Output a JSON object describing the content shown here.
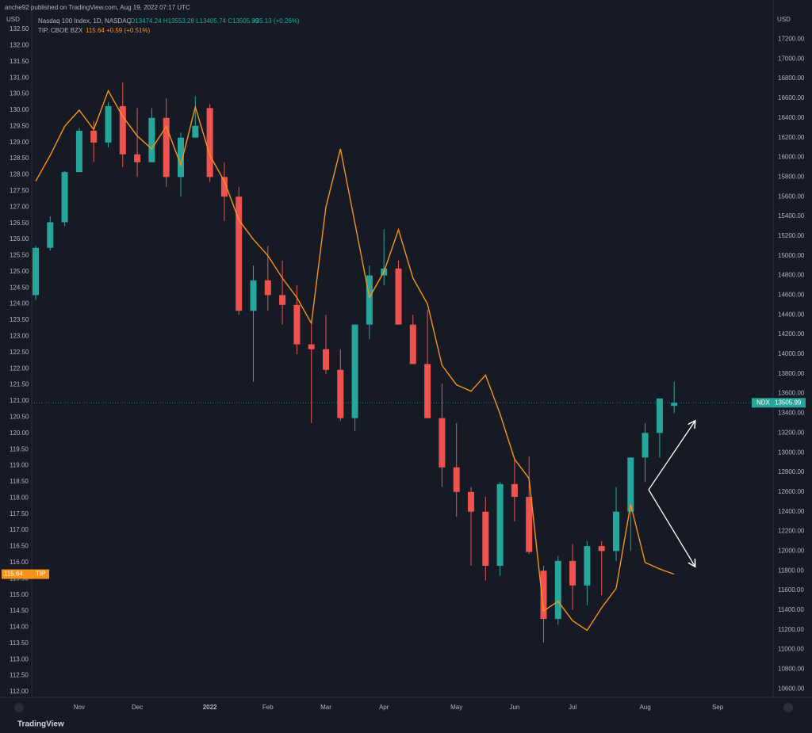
{
  "header": {
    "publisher": "anche92 published on TradingView.com, Aug 19, 2022 07:17 UTC",
    "footer": "TradingView"
  },
  "chart_data": {
    "type": "candlestick",
    "ylabel": "USD",
    "y2label": "USD",
    "categories": [
      null,
      null,
      null,
      "Nov",
      null,
      null,
      null,
      "Dec",
      null,
      null,
      null,
      null,
      "2022",
      null,
      null,
      null,
      "Feb",
      null,
      null,
      null,
      "Mar",
      null,
      null,
      null,
      "Apr",
      null,
      null,
      null,
      null,
      "May",
      null,
      null,
      null,
      "Jun",
      null,
      null,
      null,
      "Jul",
      null,
      null,
      null,
      null,
      "Aug",
      null,
      null,
      null,
      null,
      "Sep"
    ],
    "ylim": [
      112,
      132.5
    ],
    "yticks": [
      {
        "value": 112,
        "label": "112.00"
      },
      {
        "value": 112.5,
        "label": "112.50"
      },
      {
        "value": 113,
        "label": "113.00"
      },
      {
        "value": 113.5,
        "label": "113.50"
      },
      {
        "value": 114,
        "label": "114.00"
      },
      {
        "value": 114.5,
        "label": "114.50"
      },
      {
        "value": 115,
        "label": "115.00"
      },
      {
        "value": 115.5,
        "label": "115.50"
      },
      {
        "value": 116,
        "label": "116.00"
      },
      {
        "value": 116.5,
        "label": "116.50"
      },
      {
        "value": 117,
        "label": "117.00"
      },
      {
        "value": 117.5,
        "label": "117.50"
      },
      {
        "value": 118,
        "label": "118.00"
      },
      {
        "value": 118.5,
        "label": "118.50"
      },
      {
        "value": 119,
        "label": "119.00"
      },
      {
        "value": 119.5,
        "label": "119.50"
      },
      {
        "value": 120,
        "label": "120.00"
      },
      {
        "value": 120.5,
        "label": "120.50"
      },
      {
        "value": 121,
        "label": "121.00"
      },
      {
        "value": 121.5,
        "label": "121.50"
      },
      {
        "value": 122,
        "label": "122.00"
      },
      {
        "value": 122.5,
        "label": "122.50"
      },
      {
        "value": 123,
        "label": "123.00"
      },
      {
        "value": 123.5,
        "label": "123.50"
      },
      {
        "value": 124,
        "label": "124.00"
      },
      {
        "value": 124.5,
        "label": "124.50"
      },
      {
        "value": 125,
        "label": "125.00"
      },
      {
        "value": 125.5,
        "label": "125.50"
      },
      {
        "value": 126,
        "label": "126.00"
      },
      {
        "value": 126.5,
        "label": "126.50"
      },
      {
        "value": 127,
        "label": "127.00"
      },
      {
        "value": 127.5,
        "label": "127.50"
      },
      {
        "value": 128,
        "label": "128.00"
      },
      {
        "value": 128.5,
        "label": "128.50"
      },
      {
        "value": 129,
        "label": "129.00"
      },
      {
        "value": 129.5,
        "label": "129.50"
      },
      {
        "value": 130,
        "label": "130.00"
      },
      {
        "value": 130.5,
        "label": "130.50"
      },
      {
        "value": 131,
        "label": "131.00"
      },
      {
        "value": 131.5,
        "label": "131.50"
      },
      {
        "value": 132,
        "label": "132.00"
      },
      {
        "value": 132.5,
        "label": "132.50"
      }
    ],
    "y2lim": [
      10570,
      17300
    ],
    "y2ticks": [
      {
        "value": 10600,
        "label": "10600.00"
      },
      {
        "value": 10800,
        "label": "10800.00"
      },
      {
        "value": 11000,
        "label": "11000.00"
      },
      {
        "value": 11200,
        "label": "11200.00"
      },
      {
        "value": 11400,
        "label": "11400.00"
      },
      {
        "value": 11600,
        "label": "11600.00"
      },
      {
        "value": 11800,
        "label": "11800.00"
      },
      {
        "value": 12000,
        "label": "12000.00"
      },
      {
        "value": 12200,
        "label": "12200.00"
      },
      {
        "value": 12400,
        "label": "12400.00"
      },
      {
        "value": 12600,
        "label": "12600.00"
      },
      {
        "value": 12800,
        "label": "12800.00"
      },
      {
        "value": 13000,
        "label": "13000.00"
      },
      {
        "value": 13200,
        "label": "13200.00"
      },
      {
        "value": 13400,
        "label": "13400.00"
      },
      {
        "value": 13600,
        "label": "13600.00"
      },
      {
        "value": 13800,
        "label": "13800.00"
      },
      {
        "value": 14000,
        "label": "14000.00"
      },
      {
        "value": 14200,
        "label": "14200.00"
      },
      {
        "value": 14400,
        "label": "14400.00"
      },
      {
        "value": 14600,
        "label": "14600.00"
      },
      {
        "value": 14800,
        "label": "14800.00"
      },
      {
        "value": 15000,
        "label": "15000.00"
      },
      {
        "value": 15200,
        "label": "15200.00"
      },
      {
        "value": 15400,
        "label": "15400.00"
      },
      {
        "value": 15600,
        "label": "15600.00"
      },
      {
        "value": 15800,
        "label": "15800.00"
      },
      {
        "value": 16000,
        "label": "16000.00"
      },
      {
        "value": 16200,
        "label": "16200.00"
      },
      {
        "value": 16400,
        "label": "16400.00"
      },
      {
        "value": 16600,
        "label": "16600.00"
      },
      {
        "value": 16800,
        "label": "16800.00"
      },
      {
        "value": 17000,
        "label": "17000.00"
      },
      {
        "value": 17200,
        "label": "17200.00"
      }
    ],
    "series": [
      {
        "name": "Nasdaq 100 Index, 1D, NASDAQ",
        "ohlc_text": "O13474.24 H13553.28 L13405.74 C13505.99",
        "change_text": "+35.13 (+0.26%)",
        "tag": "NDX",
        "axis": "y2",
        "up_color": "#26a69a",
        "down_color": "#ef5350",
        "open": [
          14600,
          15080,
          15340,
          15850,
          16270,
          16150,
          16520,
          16030,
          15950,
          16400,
          15800,
          16200,
          16500,
          15800,
          15600,
          14440,
          14750,
          14600,
          14500,
          14100,
          14050,
          13840,
          13350,
          14300,
          14800,
          14870,
          14300,
          13900,
          13350,
          12850,
          12600,
          12400,
          11850,
          12680,
          12550,
          11800,
          11310,
          11900,
          11650,
          12050,
          12000,
          12400,
          12950,
          13200,
          13474.24,
          null,
          null,
          null
        ],
        "high": [
          15100,
          15400,
          15860,
          16300,
          16370,
          16560,
          16760,
          16500,
          16500,
          16600,
          16250,
          16620,
          16540,
          15950,
          15700,
          14900,
          15100,
          14950,
          14700,
          14300,
          14400,
          14050,
          14300,
          14900,
          15270,
          14950,
          14400,
          14450,
          13700,
          13300,
          12650,
          12550,
          12700,
          12940,
          12960,
          11850,
          11950,
          12070,
          12100,
          12100,
          12650,
          12950,
          13300,
          13550,
          13720,
          null,
          null,
          null
        ],
        "low": [
          14550,
          15050,
          15300,
          15850,
          15950,
          16100,
          15900,
          15800,
          15950,
          15700,
          15600,
          16200,
          15750,
          15350,
          14400,
          13720,
          14440,
          14300,
          14000,
          13300,
          13800,
          13320,
          13220,
          14150,
          14700,
          14300,
          13900,
          13350,
          12650,
          12350,
          11850,
          11700,
          11750,
          12300,
          11970,
          11070,
          11250,
          11400,
          11450,
          11550,
          11900,
          12000,
          12700,
          12950,
          13400,
          null,
          null,
          null
        ],
        "close": [
          15080,
          15340,
          15850,
          16270,
          16150,
          16520,
          16030,
          15950,
          16400,
          15800,
          16200,
          16320,
          15800,
          15600,
          14440,
          14750,
          14600,
          14500,
          14100,
          14050,
          13840,
          13350,
          14300,
          14800,
          14870,
          14300,
          13900,
          13350,
          12850,
          12600,
          12400,
          11850,
          12680,
          12550,
          11990,
          11310,
          11900,
          11650,
          12050,
          12000,
          12400,
          12950,
          13200,
          13550,
          13505.99,
          null,
          null,
          null
        ]
      },
      {
        "name": "TIP, CBOE BZX",
        "change_text": "+0.59 (+0.51%)",
        "tag": "TIP",
        "color": "#f7931a",
        "values": [
          127.8,
          128.6,
          129.5,
          130.0,
          129.4,
          130.6,
          129.8,
          129.2,
          128.8,
          129.5,
          128.3,
          130.1,
          128.6,
          127.8,
          126.6,
          126.0,
          125.5,
          124.8,
          124.2,
          123.4,
          127.0,
          128.8,
          126.5,
          124.2,
          125.0,
          126.3,
          124.8,
          124.0,
          122.1,
          121.5,
          121.3,
          121.8,
          120.6,
          119.2,
          118.6,
          114.5,
          114.8,
          114.2,
          113.9,
          114.6,
          115.2,
          117.8,
          116.0,
          115.8,
          115.64,
          null,
          null,
          null
        ]
      }
    ]
  }
}
